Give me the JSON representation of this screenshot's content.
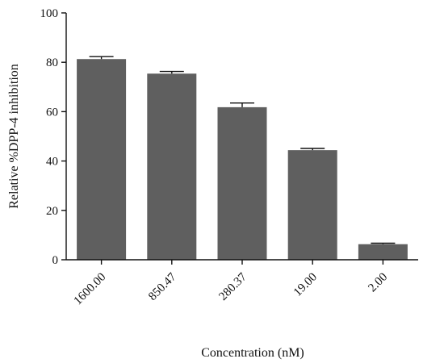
{
  "chart_data": {
    "type": "bar",
    "title": "",
    "xlabel": "Concentration (nM)",
    "ylabel": "Relative %DPP-4 inhibition",
    "categories": [
      "1600.00",
      "850.47",
      "280.37",
      "19.00",
      "2.00"
    ],
    "values": [
      81.3,
      75.4,
      61.8,
      44.4,
      6.3
    ],
    "errors": [
      1.0,
      0.9,
      1.7,
      0.7,
      0.4
    ],
    "ylim": [
      0,
      100
    ],
    "yticks": [
      0,
      20,
      40,
      60,
      80,
      100
    ],
    "grid": false,
    "bar_color": "#5f5f5f"
  }
}
